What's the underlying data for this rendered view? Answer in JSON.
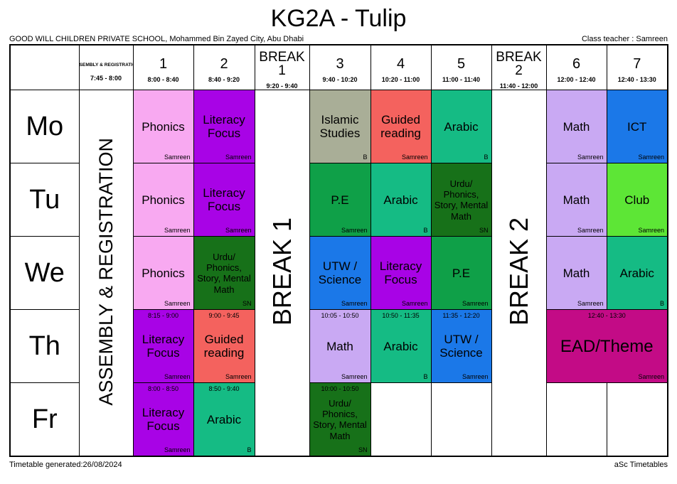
{
  "title": "KG2A - Tulip",
  "header": {
    "school": "GOOD WILL CHILDREN PRIVATE SCHOOL, Mohammed Bin Zayed City, Abu Dhabi",
    "class_teacher": "Class teacher : Samreen"
  },
  "footer": {
    "generated": "Timetable generated:26/08/2024",
    "brand": "aSc Timetables"
  },
  "columns": [
    {
      "key": "assembly",
      "label": "ASSEMBLY & REGISTRATION",
      "time": "7:45 - 8:00",
      "type": "assembly"
    },
    {
      "key": "1",
      "label": "1",
      "time": "8:00 - 8:40",
      "type": "period"
    },
    {
      "key": "2",
      "label": "2",
      "time": "8:40 - 9:20",
      "type": "period"
    },
    {
      "key": "break1",
      "label": "BREAK 1",
      "time": "9:20 - 9:40",
      "type": "break"
    },
    {
      "key": "3",
      "label": "3",
      "time": "9:40 - 10:20",
      "type": "period"
    },
    {
      "key": "4",
      "label": "4",
      "time": "10:20 - 11:00",
      "type": "period"
    },
    {
      "key": "5",
      "label": "5",
      "time": "11:00 - 11:40",
      "type": "period"
    },
    {
      "key": "break2",
      "label": "BREAK 2",
      "time": "11:40 - 12:00",
      "type": "break"
    },
    {
      "key": "6",
      "label": "6",
      "time": "12:00 - 12:40",
      "type": "period"
    },
    {
      "key": "7",
      "label": "7",
      "time": "12:40 - 13:30",
      "type": "period"
    }
  ],
  "colors": {
    "pink": "#F8A9F1",
    "purple": "#A803E6",
    "grayGreen": "#A9AE97",
    "salmon": "#F4625E",
    "emerald": "#15BB84",
    "forest": "#0FA048",
    "darkGreen": "#177119",
    "blue": "#1B78E8",
    "lightPurple": "#C9A9F3",
    "brightGreen": "#5DE636",
    "magenta": "#C30B86"
  },
  "days": [
    {
      "day": "Mo",
      "lessons": [
        {
          "period": "1",
          "subject": "Phonics",
          "teacher": "Samreen",
          "color": "pink"
        },
        {
          "period": "2",
          "subject": "Literacy Focus",
          "teacher": "Samreen",
          "color": "purple"
        },
        {
          "period": "3",
          "subject": "Islamic Studies",
          "teacher": "B",
          "color": "grayGreen"
        },
        {
          "period": "4",
          "subject": "Guided reading",
          "teacher": "Samreen",
          "color": "salmon"
        },
        {
          "period": "5",
          "subject": "Arabic",
          "teacher": "B",
          "color": "emerald"
        },
        {
          "period": "6",
          "subject": "Math",
          "teacher": "Samreen",
          "color": "lightPurple"
        },
        {
          "period": "7",
          "subject": "ICT",
          "teacher": "Samreen",
          "color": "blue"
        }
      ]
    },
    {
      "day": "Tu",
      "lessons": [
        {
          "period": "1",
          "subject": "Phonics",
          "teacher": "Samreen",
          "color": "pink"
        },
        {
          "period": "2",
          "subject": "Literacy Focus",
          "teacher": "Samreen",
          "color": "purple"
        },
        {
          "period": "3",
          "subject": "P.E",
          "teacher": "Samreen",
          "color": "forest"
        },
        {
          "period": "4",
          "subject": "Arabic",
          "teacher": "B",
          "color": "emerald"
        },
        {
          "period": "5",
          "subject": "Urdu/ Phonics, Story, Mental Math",
          "teacher": "SN",
          "color": "darkGreen",
          "small": true
        },
        {
          "period": "6",
          "subject": "Math",
          "teacher": "Samreen",
          "color": "lightPurple"
        },
        {
          "period": "7",
          "subject": "Club",
          "teacher": "Samreen",
          "color": "brightGreen"
        }
      ]
    },
    {
      "day": "We",
      "lessons": [
        {
          "period": "1",
          "subject": "Phonics",
          "teacher": "Samreen",
          "color": "pink"
        },
        {
          "period": "2",
          "subject": "Urdu/ Phonics, Story, Mental Math",
          "teacher": "SN",
          "color": "darkGreen",
          "small": true
        },
        {
          "period": "3",
          "subject": "UTW / Science",
          "teacher": "Samreen",
          "color": "blue"
        },
        {
          "period": "4",
          "subject": "Literacy Focus",
          "teacher": "Samreen",
          "color": "purple"
        },
        {
          "period": "5",
          "subject": "P.E",
          "teacher": "Samreen",
          "color": "forest"
        },
        {
          "period": "6",
          "subject": "Math",
          "teacher": "Samreen",
          "color": "lightPurple"
        },
        {
          "period": "7",
          "subject": "Arabic",
          "teacher": "B",
          "color": "emerald"
        }
      ]
    },
    {
      "day": "Th",
      "lessons": [
        {
          "period": "1",
          "subject": "Literacy Focus",
          "teacher": "Samreen",
          "color": "purple",
          "time": "8:15 - 9:00"
        },
        {
          "period": "2",
          "subject": "Guided reading",
          "teacher": "Samreen",
          "color": "salmon",
          "time": "9:00 - 9:45"
        },
        {
          "period": "3",
          "subject": "Math",
          "teacher": "Samreen",
          "color": "lightPurple",
          "time": "10:05 - 10:50"
        },
        {
          "period": "4",
          "subject": "Arabic",
          "teacher": "B",
          "color": "emerald",
          "time": "10:50 - 11:35"
        },
        {
          "period": "5",
          "subject": "UTW / Science",
          "teacher": "Samreen",
          "color": "blue",
          "time": "11:35 - 12:20"
        },
        {
          "period": "6",
          "subject": "EAD/Theme",
          "teacher": "Samreen",
          "color": "magenta",
          "time": "12:40 - 13:30",
          "span": 2,
          "large": true
        }
      ]
    },
    {
      "day": "Fr",
      "lessons": [
        {
          "period": "1",
          "subject": "Literacy Focus",
          "teacher": "Samreen",
          "color": "purple",
          "time": "8:00 - 8:50"
        },
        {
          "period": "2",
          "subject": "Arabic",
          "teacher": "B",
          "color": "emerald",
          "time": "8:50 - 9:40"
        },
        {
          "period": "3",
          "subject": "Urdu/ Phonics, Story, Mental Math",
          "teacher": "SN",
          "color": "darkGreen",
          "time": "10:00 - 10:50",
          "small": true
        }
      ]
    }
  ]
}
